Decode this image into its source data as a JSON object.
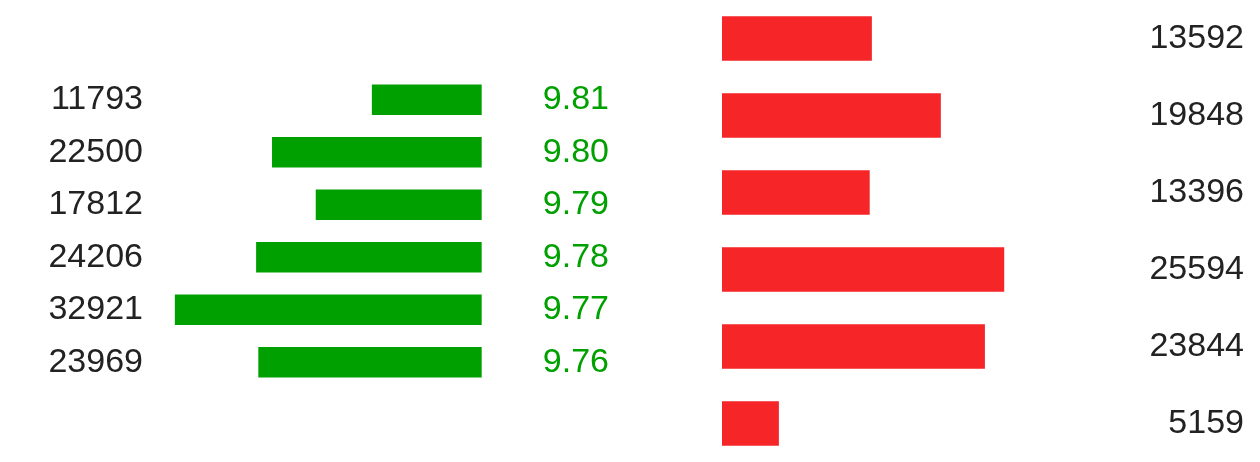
{
  "chart_data": [
    {
      "type": "bar",
      "orientation": "horizontal",
      "categories": [
        "9.81",
        "9.80",
        "9.79",
        "9.78",
        "9.77",
        "9.76"
      ],
      "values": [
        11793,
        22500,
        17812,
        24206,
        32921,
        23969
      ],
      "color": "#00a000",
      "data_labels": true,
      "tick_labels": "y",
      "grid": false,
      "legend": false
    },
    {
      "type": "bar",
      "orientation": "horizontal",
      "categories": [
        null,
        null,
        null,
        null,
        null,
        null
      ],
      "values": [
        13592,
        19848,
        13396,
        25594,
        23844,
        5159
      ],
      "color": "#f52528",
      "data_labels": true,
      "tick_labels": false,
      "grid": false,
      "legend": false
    }
  ]
}
